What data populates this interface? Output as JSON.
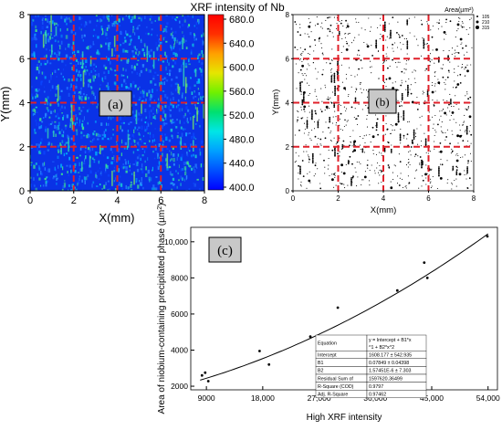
{
  "chart_data": [
    {
      "id": "a",
      "type": "heatmap",
      "panel_label": "(a)",
      "title": "XRF intensity of Nb",
      "xlabel": "X(mm)",
      "ylabel": "Y(mm)",
      "xlim": [
        0,
        8
      ],
      "ylim": [
        0,
        8
      ],
      "xticks": [
        "0",
        "2",
        "4",
        "6",
        "8"
      ],
      "yticks": [
        "0",
        "2",
        "4",
        "6",
        "8"
      ],
      "grid_lines_x": [
        2,
        4,
        6
      ],
      "grid_lines_y": [
        2,
        4,
        6
      ],
      "colorbar": {
        "min": 400,
        "max": 680,
        "ticks": [
          "400.0",
          "440.0",
          "480.0",
          "520.0",
          "560.0",
          "600.0",
          "640.0",
          "680.0"
        ],
        "colors": [
          "#0000ff",
          "#0050ff",
          "#00a0ff",
          "#00e6e6",
          "#00e070",
          "#70f000",
          "#e6e600",
          "#ffa000",
          "#ff3000",
          "#ff0000"
        ]
      },
      "colors": {
        "background": "#0a32e6",
        "dash": "#e0202a"
      }
    },
    {
      "id": "b",
      "type": "scatter",
      "panel_label": "(b)",
      "xlabel": "X(mm)",
      "ylabel": "Y(mm)",
      "xlim": [
        0,
        8
      ],
      "ylim": [
        0,
        8
      ],
      "xticks": [
        "0",
        "2",
        "4",
        "6",
        "8"
      ],
      "yticks": [
        "0",
        "2",
        "4",
        "6",
        "8"
      ],
      "grid_lines_x": [
        2,
        4,
        6
      ],
      "grid_lines_y": [
        2,
        4,
        6
      ],
      "legend": {
        "title": "Area(µm²)",
        "entries": [
          "105",
          "210",
          "315"
        ],
        "placement": "top-right"
      },
      "colors": {
        "dash": "#e0202a",
        "points": "#000000"
      }
    },
    {
      "id": "c",
      "type": "scatter",
      "panel_label": "(c)",
      "xlabel": "High XRF intensity",
      "ylabel_text": "Area of niobium-containing precipitated phase (µm",
      "ylabel_sup": "2",
      "ylabel_close": ")",
      "xlim": [
        6500,
        55500
      ],
      "ylim": [
        1800,
        10800
      ],
      "xticks": [
        9000,
        18000,
        27000,
        36000,
        45000,
        54000
      ],
      "xtick_labels": [
        "9000",
        "18,000",
        "27,000",
        "36,000",
        "45,000",
        "54,000"
      ],
      "yticks": [
        2000,
        4000,
        6000,
        8000,
        10000
      ],
      "ytick_labels": [
        "2000",
        "4000",
        "6000",
        "8000",
        "10,000"
      ],
      "points": [
        [
          8300,
          2600
        ],
        [
          8800,
          2750
        ],
        [
          9300,
          2280
        ],
        [
          17500,
          3950
        ],
        [
          19000,
          3200
        ],
        [
          25600,
          4750
        ],
        [
          30000,
          6350
        ],
        [
          39500,
          7300
        ],
        [
          43800,
          8850
        ],
        [
          44300,
          8000
        ],
        [
          53900,
          10300
        ]
      ],
      "fit": {
        "intercept": 1608.177,
        "b1": 0.07849,
        "b2": 1.57451e-06,
        "x_from": 8000,
        "x_to": 54000
      },
      "fit_table": [
        [
          "Equation",
          "y = Intercept + B1*x^1 + B2*x^2"
        ],
        [
          "Intercept",
          "1608.177 ± 542.935"
        ],
        [
          "B1",
          "0.07849 ± 0.04398"
        ],
        [
          "B2",
          "1.57451E-6 ± 7.303"
        ],
        [
          "Residual Sum of",
          "1597620.36499"
        ],
        [
          "R-Square (COD)",
          "0.9797"
        ],
        [
          "Adj. R-Square",
          "0.97462"
        ]
      ]
    }
  ]
}
